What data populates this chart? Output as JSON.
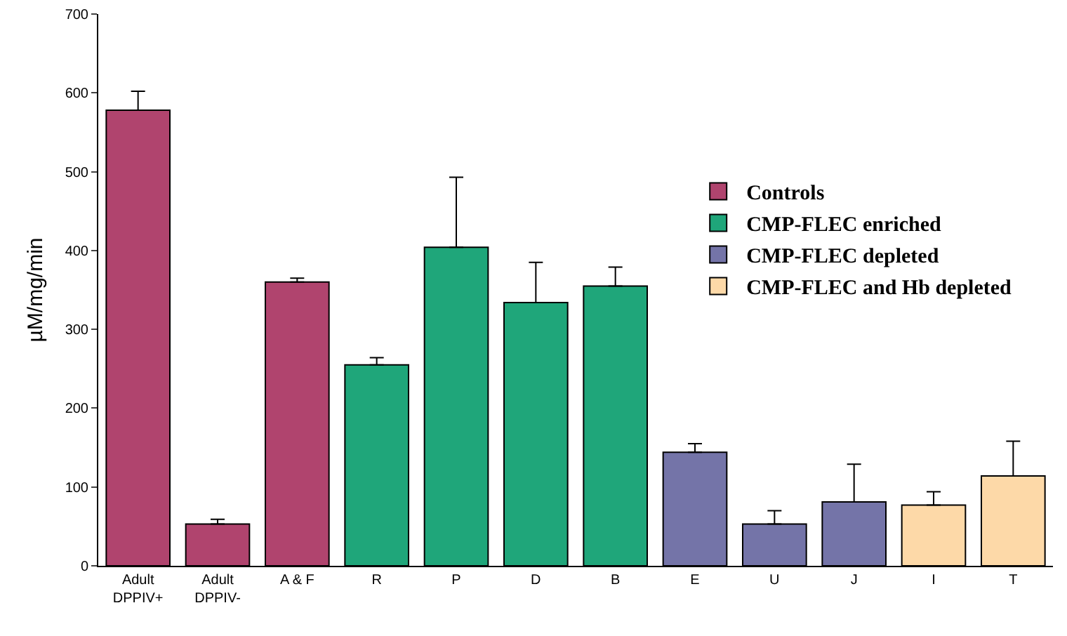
{
  "chart_data": {
    "type": "bar",
    "ylabel": "µM/mg/min",
    "categories": [
      "Adult\nDPPIV+",
      "Adult\nDPPIV-",
      "A & F",
      "R",
      "P",
      "D",
      "B",
      "E",
      "U",
      "J",
      "I",
      "T"
    ],
    "series": [
      {
        "name": "Controls",
        "color": "#b0446e",
        "values": [
          578,
          53,
          360,
          null,
          null,
          null,
          null,
          null,
          null,
          null,
          null,
          null
        ],
        "errors": [
          [
            578,
            602
          ],
          [
            53,
            59
          ],
          [
            360,
            365
          ],
          null,
          null,
          null,
          null,
          null,
          null,
          null,
          null,
          null
        ]
      },
      {
        "name": "CMP-FLEC enriched",
        "color": "#1fa67a",
        "values": [
          null,
          null,
          null,
          255,
          404,
          334,
          355,
          null,
          null,
          null,
          null,
          null
        ],
        "errors": [
          null,
          null,
          null,
          [
            255,
            264
          ],
          [
            404,
            493
          ],
          [
            334,
            385
          ],
          [
            355,
            379
          ],
          null,
          null,
          null,
          null,
          null
        ]
      },
      {
        "name": "CMP-FLEC depleted",
        "color": "#7474a8",
        "values": [
          null,
          null,
          null,
          null,
          null,
          null,
          null,
          144,
          53,
          81,
          null,
          null
        ],
        "errors": [
          null,
          null,
          null,
          null,
          null,
          null,
          null,
          [
            144,
            155
          ],
          [
            53,
            70
          ],
          [
            81,
            129
          ],
          null,
          null
        ]
      },
      {
        "name": "CMP-FLEC and Hb depleted",
        "color": "#fdd9a8",
        "values": [
          null,
          null,
          null,
          null,
          null,
          null,
          null,
          null,
          null,
          null,
          77,
          114
        ],
        "errors": [
          null,
          null,
          null,
          null,
          null,
          null,
          null,
          null,
          null,
          null,
          [
            77,
            94
          ],
          [
            114,
            158
          ]
        ]
      }
    ],
    "ylim": [
      0,
      700
    ],
    "yticks": [
      0,
      100,
      200,
      300,
      400,
      500,
      600,
      700
    ],
    "grid": false,
    "legend": "right"
  }
}
